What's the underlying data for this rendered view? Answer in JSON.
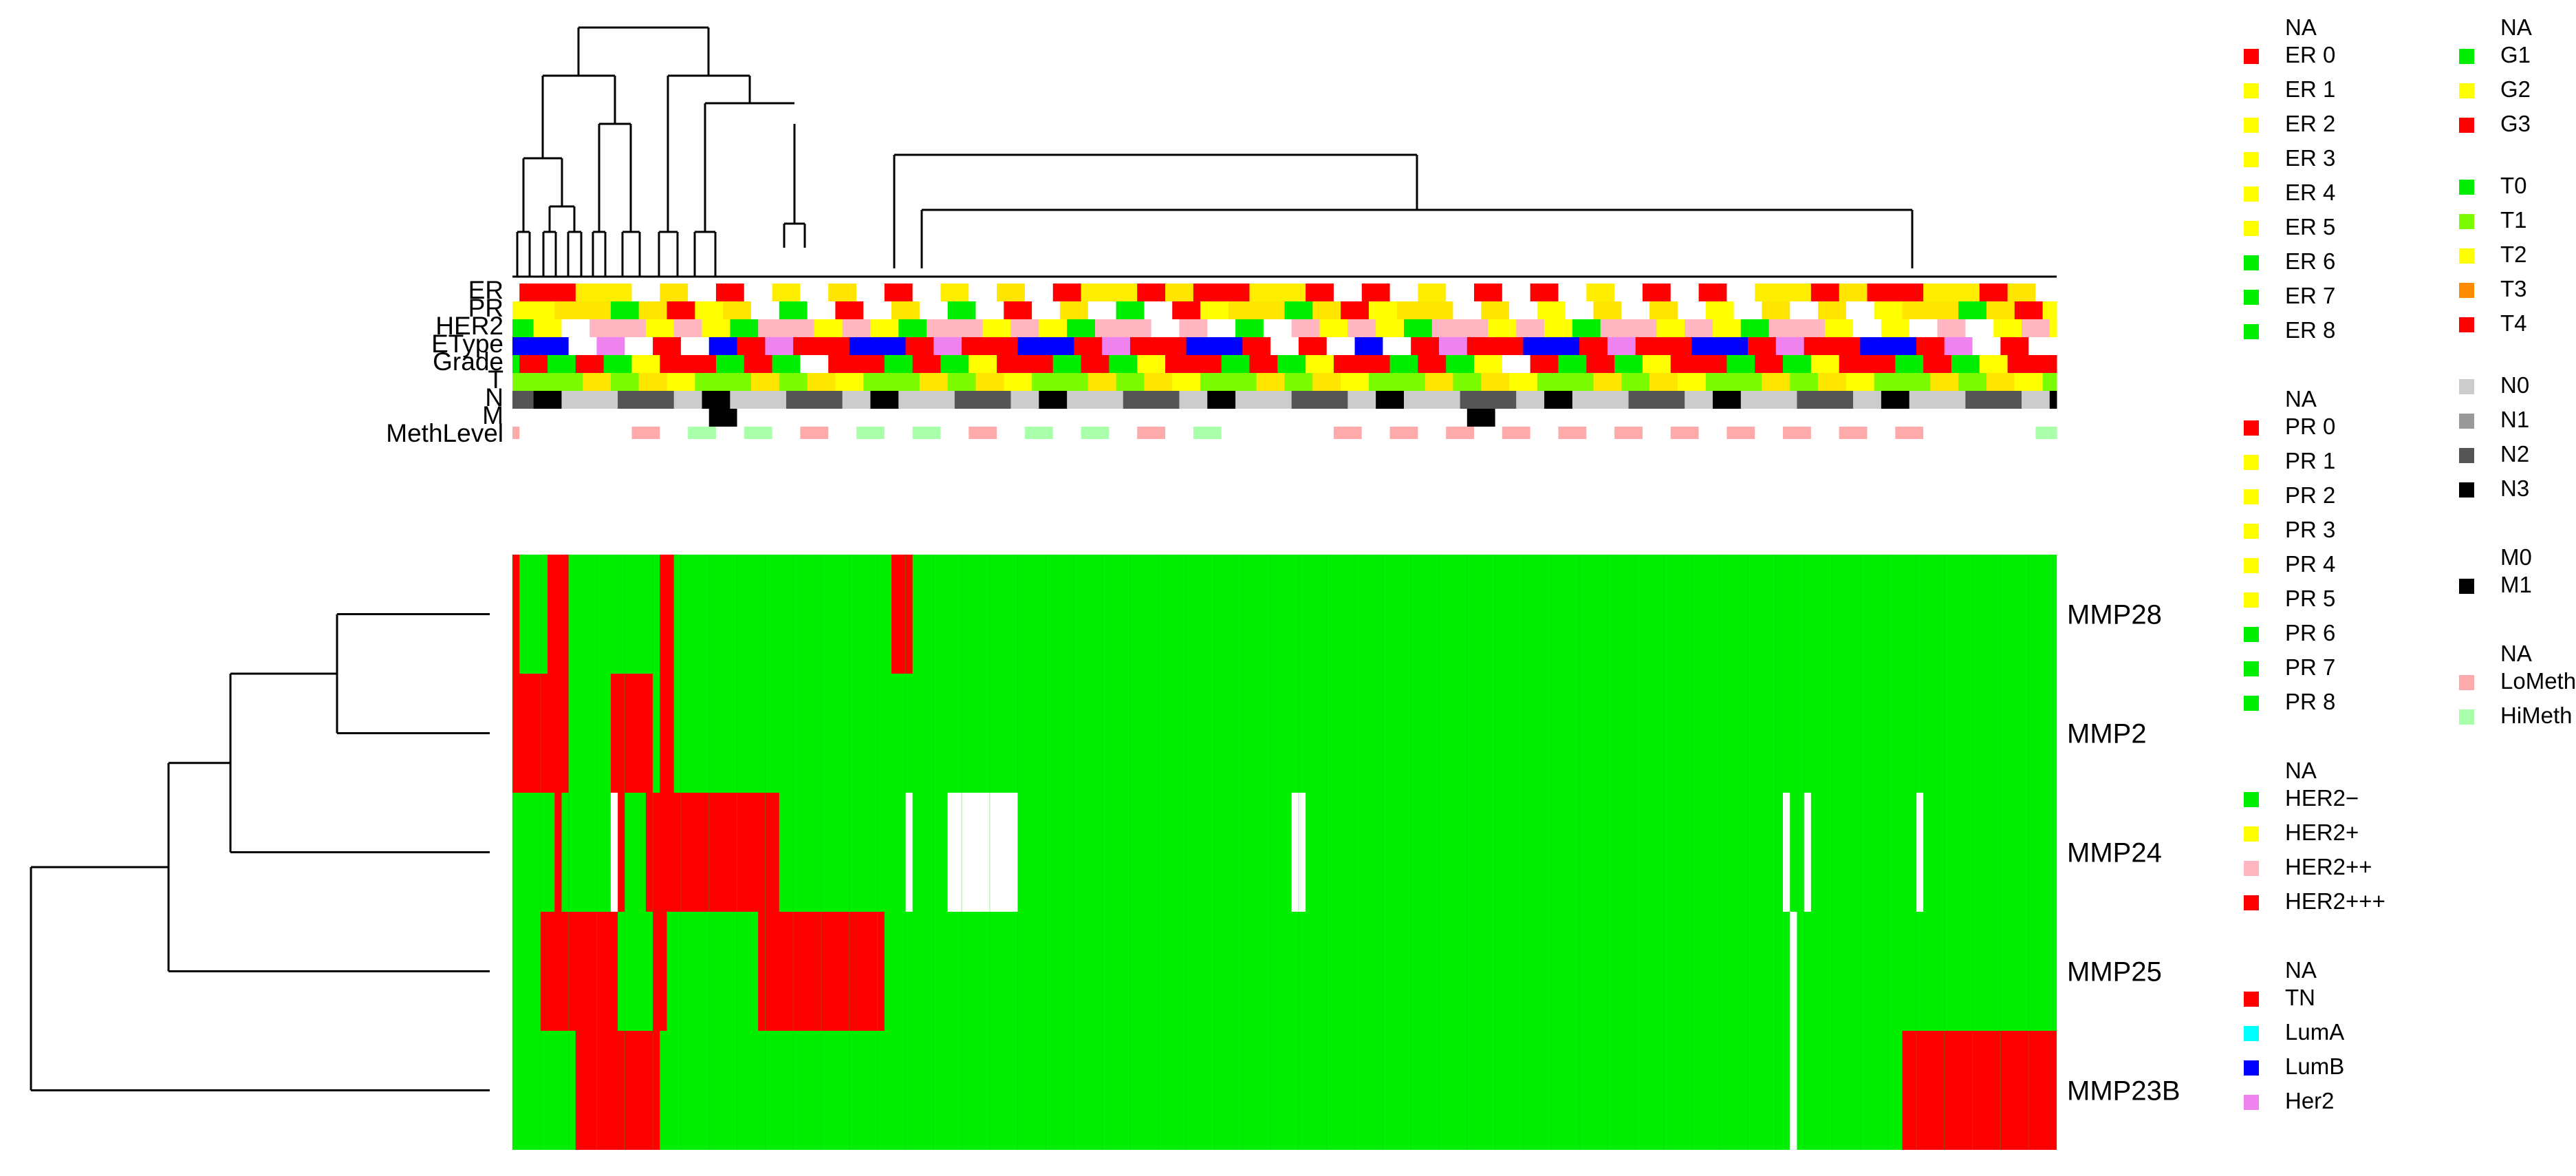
{
  "chart_data": {
    "type": "heatmap",
    "title": "",
    "columns": 220,
    "rows": [
      "MMP28",
      "MMP2",
      "MMP24",
      "MMP25",
      "MMP23B"
    ],
    "row_order_top_to_bottom": [
      "MMP28",
      "MMP2",
      "MMP24",
      "MMP25",
      "MMP23B"
    ],
    "cell_values": [
      "high",
      "low",
      "NA"
    ],
    "cell_colors": {
      "high": "#ff0000",
      "low": "#00ee00",
      "NA": "#ffffff"
    },
    "heatmap_runs": [
      {
        "row": "MMP28",
        "value": "high",
        "cols": [
          [
            0,
            1
          ],
          [
            5,
            8
          ],
          [
            21,
            23
          ],
          [
            54,
            57
          ]
        ]
      },
      {
        "row": "MMP2",
        "value": "high",
        "cols": [
          [
            0,
            8
          ],
          [
            14,
            20
          ],
          [
            21,
            23
          ]
        ]
      },
      {
        "row": "MMP24",
        "value": "high",
        "cols": [
          [
            6,
            7
          ],
          [
            15,
            16
          ],
          [
            19,
            38
          ]
        ]
      },
      {
        "row": "MMP24",
        "value": "NA",
        "cols": [
          [
            14,
            15
          ],
          [
            56,
            57
          ],
          [
            62,
            72
          ],
          [
            111,
            113
          ],
          [
            181,
            182
          ],
          [
            184,
            185
          ],
          [
            200,
            201
          ]
        ]
      },
      {
        "row": "MMP25",
        "value": "high",
        "cols": [
          [
            4,
            15
          ],
          [
            20,
            22
          ],
          [
            35,
            53
          ]
        ]
      },
      {
        "row": "MMP23B",
        "value": "high",
        "cols": [
          [
            9,
            21
          ],
          [
            198,
            220
          ]
        ]
      },
      {
        "row": "MMP25",
        "value": "NA",
        "cols": [
          [
            182,
            183
          ]
        ]
      },
      {
        "row": "MMP23B",
        "value": "NA",
        "cols": [
          [
            182,
            183
          ]
        ]
      }
    ],
    "annotation_tracks": [
      "ER",
      "PR",
      "HER2",
      "EType",
      "Grade",
      "T",
      "N",
      "M",
      "MethLevel"
    ],
    "annotation_fill_pattern": [
      [
        0,
        3,
        2,
        3,
        0,
        0,
        2,
        0,
        5,
        2,
        1,
        0,
        3,
        2,
        2,
        2,
        1,
        0,
        4,
        2,
        3,
        2,
        2,
        0
      ],
      [
        2,
        0,
        0,
        1,
        3,
        2,
        0,
        2,
        1,
        4,
        0,
        2,
        2,
        1,
        0,
        3,
        2,
        0,
        1,
        2,
        1,
        3,
        0,
        0
      ],
      [
        1,
        2,
        0,
        0,
        3,
        1,
        2,
        2,
        0,
        1,
        4,
        2,
        1,
        0,
        2,
        1,
        3,
        2,
        0,
        2,
        0,
        1,
        2,
        1
      ]
    ],
    "palettes": {
      "ER": {
        "cols": [
          "#ffffff",
          "#ff0000",
          "#ffff00",
          "#ffee00",
          "#ffe600",
          "#00ee00",
          "#00dd22"
        ],
        "pattern": 0,
        "na_prob": 0.3
      },
      "PR": {
        "cols": [
          "#ffffff",
          "#ff0000",
          "#ffff00",
          "#ffe600",
          "#00ee00",
          "#00dd22"
        ],
        "pattern": 1,
        "na_prob": 0.3
      },
      "HER2": {
        "cols": [
          "#ffffff",
          "#00ee00",
          "#ffff00",
          "#ffb6c1",
          "#ff0000"
        ],
        "pattern": 2,
        "na_prob": 0.1
      },
      "EType": {
        "cols": [
          "#ffffff",
          "#ff0000",
          "#00ffff",
          "#0000ff",
          "#ee82ee"
        ],
        "pattern": 0,
        "na_prob": 0.1
      },
      "Grade": {
        "cols": [
          "#ffffff",
          "#00ee00",
          "#ffff00",
          "#ff0000"
        ],
        "pattern": 1,
        "na_prob": 0.05
      },
      "T": {
        "cols": [
          "#ffff00",
          "#ffe600",
          "#7cfc00",
          "#ff8c00",
          "#ff0000"
        ],
        "pattern": 2,
        "na_prob": 0.0
      },
      "N": {
        "cols": [
          "#cccccc",
          "#999999",
          "#555555",
          "#000000"
        ],
        "pattern": 0,
        "na_prob": 0.0
      },
      "M": {
        "cols": [
          "#ffffff",
          "#000000"
        ],
        "pattern": 1,
        "na_prob": 0.0
      },
      "MethLevel": {
        "cols": [
          "#ffffff",
          "#ffaaaa",
          "#aaffaa"
        ],
        "pattern": 2,
        "na_prob": 0.55
      }
    }
  },
  "legend": [
    {
      "group": "ER",
      "header": "NA",
      "items": [
        {
          "label": "ER 0",
          "color": "#ff0000"
        },
        {
          "label": "ER 1",
          "color": "#ffff00"
        },
        {
          "label": "ER 2",
          "color": "#ffff00"
        },
        {
          "label": "ER 3",
          "color": "#ffff00"
        },
        {
          "label": "ER 4",
          "color": "#ffff00"
        },
        {
          "label": "ER 5",
          "color": "#ffff00"
        },
        {
          "label": "ER 6",
          "color": "#00ee00"
        },
        {
          "label": "ER 7",
          "color": "#00ee00"
        },
        {
          "label": "ER 8",
          "color": "#00ee00"
        }
      ]
    },
    {
      "group": "PR",
      "header": "NA",
      "items": [
        {
          "label": "PR 0",
          "color": "#ff0000"
        },
        {
          "label": "PR 1",
          "color": "#ffff00"
        },
        {
          "label": "PR 2",
          "color": "#ffff00"
        },
        {
          "label": "PR 3",
          "color": "#ffff00"
        },
        {
          "label": "PR 4",
          "color": "#ffff00"
        },
        {
          "label": "PR 5",
          "color": "#ffff00"
        },
        {
          "label": "PR 6",
          "color": "#00ee00"
        },
        {
          "label": "PR 7",
          "color": "#00ee00"
        },
        {
          "label": "PR 8",
          "color": "#00ee00"
        }
      ]
    },
    {
      "group": "HER2",
      "header": "NA",
      "items": [
        {
          "label": "HER2−",
          "color": "#00ee00"
        },
        {
          "label": "HER2+",
          "color": "#ffff00"
        },
        {
          "label": "HER2++",
          "color": "#ffb6c1"
        },
        {
          "label": "HER2+++",
          "color": "#ff0000"
        }
      ]
    },
    {
      "group": "EType",
      "header": "NA",
      "items": [
        {
          "label": "TN",
          "color": "#ff0000"
        },
        {
          "label": "LumA",
          "color": "#00ffff"
        },
        {
          "label": "LumB",
          "color": "#0000ff"
        },
        {
          "label": "Her2",
          "color": "#ee82ee"
        }
      ]
    },
    {
      "group": "Grade",
      "header": "NA",
      "items": [
        {
          "label": "G1",
          "color": "#00ee00"
        },
        {
          "label": "G2",
          "color": "#ffff00"
        },
        {
          "label": "G3",
          "color": "#ff0000"
        }
      ]
    },
    {
      "group": "T",
      "header": "",
      "items": [
        {
          "label": "T0",
          "color": "#00ee00"
        },
        {
          "label": "T1",
          "color": "#7cfc00"
        },
        {
          "label": "T2",
          "color": "#ffff00"
        },
        {
          "label": "T3",
          "color": "#ff8c00"
        },
        {
          "label": "T4",
          "color": "#ff0000"
        }
      ]
    },
    {
      "group": "N",
      "header": "",
      "items": [
        {
          "label": "N0",
          "color": "#cccccc"
        },
        {
          "label": "N1",
          "color": "#999999"
        },
        {
          "label": "N2",
          "color": "#555555"
        },
        {
          "label": "N3",
          "color": "#000000"
        }
      ]
    },
    {
      "group": "M",
      "header": "M0",
      "items": [
        {
          "label": "M1",
          "color": "#000000"
        }
      ]
    },
    {
      "group": "MethLevel",
      "header": "NA",
      "items": [
        {
          "label": "LoMeth",
          "color": "#ffaaaa"
        },
        {
          "label": "HiMeth",
          "color": "#aaffaa"
        }
      ]
    }
  ]
}
